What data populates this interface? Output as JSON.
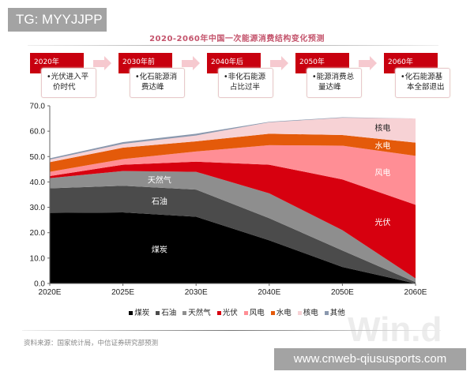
{
  "overlay_tag": "TG: MYYJJPP",
  "overlay_url": "www.cnweb-qiususports.com",
  "watermark": "Win.d",
  "title": "2020-2060年中国一次能源消费结构变化预测",
  "timeline": [
    {
      "year": "2020年",
      "text1": "•光伏进入平",
      "text2": "价时代"
    },
    {
      "year": "2030年前",
      "text1": "•化石能源消",
      "text2": "费达峰"
    },
    {
      "year": "2040年后",
      "text1": "•非化石能源",
      "text2": "占比过半"
    },
    {
      "year": "2050年",
      "text1": "•能源消费总",
      "text2": "量达峰"
    },
    {
      "year": "2060年",
      "text1": "•化石能源基",
      "text2": "本全部退出"
    }
  ],
  "source": "资料来源：国家统计局，中信证券研究部预测",
  "chart_data": {
    "type": "area",
    "stacked": true,
    "categories": [
      "2020E",
      "2025E",
      "2030E",
      "2040E",
      "2050E",
      "2060E"
    ],
    "ylim": [
      0,
      70
    ],
    "yticks": [
      "0.0",
      "10.0",
      "20.0",
      "30.0",
      "40.0",
      "50.0",
      "60.0",
      "70.0"
    ],
    "grid": false,
    "legend_position": "bottom",
    "series": [
      {
        "name": "煤炭",
        "color": "#000000",
        "label_color": "#ffffff",
        "values": [
          27.8,
          28.0,
          26.3,
          17.0,
          6.5,
          0.0
        ]
      },
      {
        "name": "石油",
        "color": "#4b4b4b",
        "label_color": "#ffffff",
        "values": [
          9.7,
          10.5,
          10.7,
          8.7,
          6.5,
          0.5
        ]
      },
      {
        "name": "天然气",
        "color": "#8e8e8e",
        "label_color": "#ffffff",
        "values": [
          4.0,
          5.8,
          7.0,
          9.8,
          8.0,
          1.5
        ]
      },
      {
        "name": "光伏",
        "color": "#d7000f",
        "label_color": "#ffffff",
        "values": [
          0.8,
          2.5,
          4.0,
          11.3,
          20.0,
          29.0
        ]
      },
      {
        "name": "风电",
        "color": "#ff8e95",
        "label_color": "#ffffff",
        "values": [
          1.7,
          2.2,
          4.0,
          7.7,
          13.3,
          19.3
        ]
      },
      {
        "name": "水电",
        "color": "#e45a0a",
        "label_color": "#ffffff",
        "values": [
          3.8,
          4.5,
          4.0,
          4.5,
          4.2,
          5.2
        ]
      },
      {
        "name": "核电",
        "color": "#f7d2d5",
        "label_color": "#222222",
        "values": [
          1.0,
          1.5,
          2.3,
          4.5,
          6.8,
          9.5
        ]
      },
      {
        "name": "其他",
        "color": "#8a98ae",
        "values": [
          0.5,
          0.7,
          0.7,
          0.2,
          0.2,
          0.0
        ]
      }
    ]
  }
}
